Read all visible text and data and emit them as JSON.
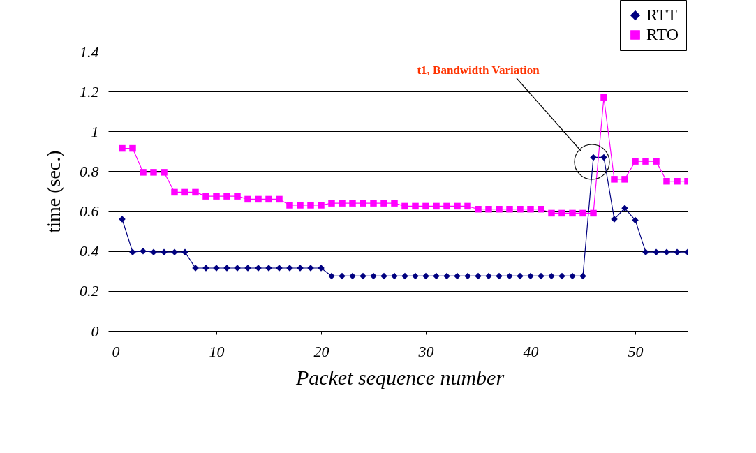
{
  "chart_data": {
    "type": "line",
    "xlabel": "Packet sequence number",
    "ylabel": "time (sec.)",
    "x": [
      1,
      2,
      3,
      4,
      5,
      6,
      7,
      8,
      9,
      10,
      11,
      12,
      13,
      14,
      15,
      16,
      17,
      18,
      19,
      20,
      21,
      22,
      23,
      24,
      25,
      26,
      27,
      28,
      29,
      30,
      31,
      32,
      33,
      34,
      35,
      36,
      37,
      38,
      39,
      40,
      41,
      42,
      43,
      44,
      45,
      46,
      47,
      48,
      49,
      50,
      51,
      52,
      53,
      54,
      55
    ],
    "series": [
      {
        "name": "RTT",
        "color": "#000080",
        "marker": "diamond",
        "values": [
          0.56,
          0.395,
          0.4,
          0.395,
          0.395,
          0.395,
          0.395,
          0.315,
          0.315,
          0.315,
          0.315,
          0.315,
          0.315,
          0.315,
          0.315,
          0.315,
          0.315,
          0.315,
          0.315,
          0.315,
          0.275,
          0.275,
          0.275,
          0.275,
          0.275,
          0.275,
          0.275,
          0.275,
          0.275,
          0.275,
          0.275,
          0.275,
          0.275,
          0.275,
          0.275,
          0.275,
          0.275,
          0.275,
          0.275,
          0.275,
          0.275,
          0.275,
          0.275,
          0.275,
          0.275,
          0.87,
          0.87,
          0.56,
          0.615,
          0.555,
          0.395,
          0.395,
          0.395,
          0.395,
          0.395
        ]
      },
      {
        "name": "RTO",
        "color": "#ff00ff",
        "marker": "square",
        "values": [
          0.915,
          0.915,
          0.795,
          0.795,
          0.795,
          0.695,
          0.695,
          0.695,
          0.675,
          0.675,
          0.675,
          0.675,
          0.66,
          0.66,
          0.66,
          0.66,
          0.63,
          0.63,
          0.63,
          0.63,
          0.64,
          0.64,
          0.64,
          0.64,
          0.64,
          0.64,
          0.64,
          0.625,
          0.625,
          0.625,
          0.625,
          0.625,
          0.625,
          0.625,
          0.61,
          0.61,
          0.61,
          0.61,
          0.61,
          0.61,
          0.61,
          0.59,
          0.59,
          0.59,
          0.59,
          0.59,
          1.17,
          0.76,
          0.76,
          0.85,
          0.85,
          0.85,
          0.75,
          0.75,
          0.75
        ]
      }
    ],
    "xlim": [
      0,
      55
    ],
    "xticks": [
      0,
      10,
      20,
      30,
      40,
      50
    ],
    "ylim": [
      0,
      1.4
    ],
    "yticks": [
      0,
      0.2,
      0.4,
      0.6,
      0.8,
      1,
      1.2,
      1.4
    ],
    "grid": "y",
    "legend": "top right",
    "line_style": "solid",
    "annotations": [
      "t1, Bandwidth Variation"
    ]
  }
}
